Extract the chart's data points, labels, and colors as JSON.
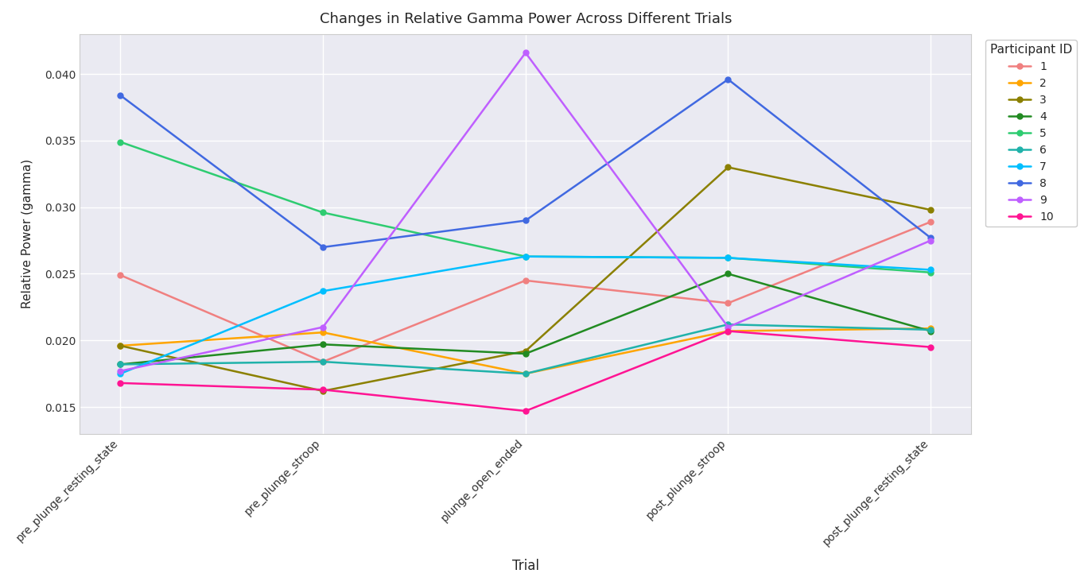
{
  "title": "Changes in Relative Gamma Power Across Different Trials",
  "xlabel": "Trial",
  "ylabel": "Relative Power (gamma)",
  "x_labels": [
    "pre_plunge_resting_state",
    "pre_plunge_stroop",
    "plunge_open_ended",
    "post_plunge_stroop",
    "post_plunge_resting_state"
  ],
  "participants": {
    "1": {
      "color": "#f08080",
      "values": [
        0.0249,
        0.0184,
        0.0245,
        0.0228,
        0.0289
      ]
    },
    "2": {
      "color": "#FFA500",
      "values": [
        0.0196,
        0.0206,
        0.0175,
        0.0207,
        0.0209
      ]
    },
    "3": {
      "color": "#8B8000",
      "values": [
        0.0196,
        0.0162,
        0.0192,
        0.033,
        0.0298
      ]
    },
    "4": {
      "color": "#228B22",
      "values": [
        0.0182,
        0.0197,
        0.019,
        0.025,
        0.0207
      ]
    },
    "5": {
      "color": "#2ECC71",
      "values": [
        0.0349,
        0.0296,
        0.0263,
        0.0262,
        0.0251
      ]
    },
    "6": {
      "color": "#20B2AA",
      "values": [
        0.0182,
        0.0184,
        0.0175,
        0.0212,
        0.0208
      ]
    },
    "7": {
      "color": "#00BFFF",
      "values": [
        0.0175,
        0.0237,
        0.0263,
        0.0262,
        0.0253
      ]
    },
    "8": {
      "color": "#4169E1",
      "values": [
        0.0384,
        0.027,
        0.029,
        0.0396,
        0.0277
      ]
    },
    "9": {
      "color": "#BF5FFF",
      "values": [
        0.0177,
        0.021,
        0.0416,
        0.021,
        0.0275
      ]
    },
    "10": {
      "color": "#FF1493",
      "values": [
        0.0168,
        0.0163,
        0.0147,
        0.0207,
        0.0195
      ]
    }
  },
  "legend_title": "Participant ID",
  "ylim": [
    0.013,
    0.043
  ],
  "figsize": [
    13.68,
    7.36
  ],
  "dpi": 100
}
